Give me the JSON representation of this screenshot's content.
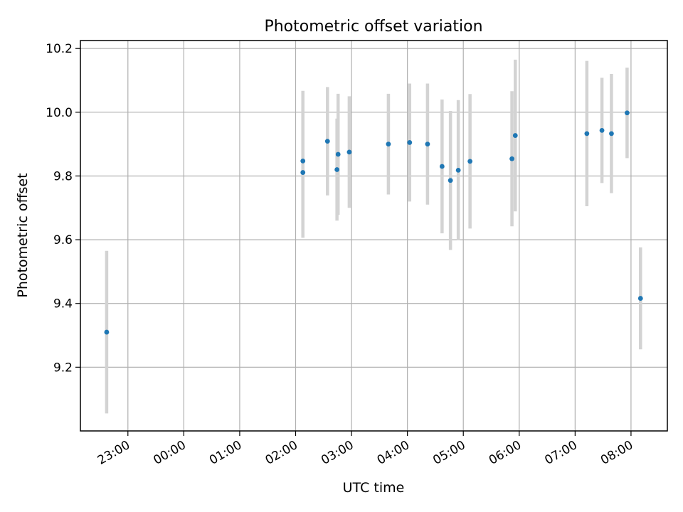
{
  "chart_data": {
    "type": "scatter",
    "title": "Photometric offset variation",
    "xlabel": "UTC time",
    "ylabel": "Photometric offset",
    "x_unit": "hours (UTC, day-continuous; values >= 24 are next day)",
    "xlim": [
      22.15,
      32.65
    ],
    "ylim": [
      9.0,
      10.225
    ],
    "grid": true,
    "xticks": [
      {
        "value": 23,
        "label": "23:00"
      },
      {
        "value": 24,
        "label": "00:00"
      },
      {
        "value": 25,
        "label": "01:00"
      },
      {
        "value": 26,
        "label": "02:00"
      },
      {
        "value": 27,
        "label": "03:00"
      },
      {
        "value": 28,
        "label": "04:00"
      },
      {
        "value": 29,
        "label": "05:00"
      },
      {
        "value": 30,
        "label": "06:00"
      },
      {
        "value": 31,
        "label": "07:00"
      },
      {
        "value": 32,
        "label": "08:00"
      }
    ],
    "yticks": [
      {
        "value": 9.2,
        "label": "9.2"
      },
      {
        "value": 9.4,
        "label": "9.4"
      },
      {
        "value": 9.6,
        "label": "9.6"
      },
      {
        "value": 9.8,
        "label": "9.8"
      },
      {
        "value": 10.0,
        "label": "10.0"
      },
      {
        "value": 10.2,
        "label": "10.2"
      }
    ],
    "marker_color": "#1f77b4",
    "errorbar_color": "#d3d3d3",
    "points": [
      {
        "x": 22.62,
        "y": 9.31,
        "err": 0.255
      },
      {
        "x": 26.13,
        "y": 9.847,
        "err": 0.22
      },
      {
        "x": 26.13,
        "y": 9.811,
        "err": 0.205
      },
      {
        "x": 26.57,
        "y": 9.909,
        "err": 0.17
      },
      {
        "x": 26.74,
        "y": 9.82,
        "err": 0.16
      },
      {
        "x": 26.76,
        "y": 9.868,
        "err": 0.19
      },
      {
        "x": 26.96,
        "y": 9.875,
        "err": 0.175
      },
      {
        "x": 27.66,
        "y": 9.9,
        "err": 0.158
      },
      {
        "x": 28.04,
        "y": 9.905,
        "err": 0.185
      },
      {
        "x": 28.36,
        "y": 9.9,
        "err": 0.19
      },
      {
        "x": 28.62,
        "y": 9.83,
        "err": 0.21
      },
      {
        "x": 28.77,
        "y": 9.786,
        "err": 0.218
      },
      {
        "x": 28.91,
        "y": 9.818,
        "err": 0.22
      },
      {
        "x": 29.12,
        "y": 9.846,
        "err": 0.211
      },
      {
        "x": 29.87,
        "y": 9.854,
        "err": 0.212
      },
      {
        "x": 29.93,
        "y": 9.927,
        "err": 0.238
      },
      {
        "x": 31.21,
        "y": 9.933,
        "err": 0.228
      },
      {
        "x": 31.48,
        "y": 9.943,
        "err": 0.165
      },
      {
        "x": 31.65,
        "y": 9.933,
        "err": 0.187
      },
      {
        "x": 31.93,
        "y": 9.998,
        "err": 0.142
      },
      {
        "x": 32.17,
        "y": 9.416,
        "err": 0.16
      }
    ]
  }
}
